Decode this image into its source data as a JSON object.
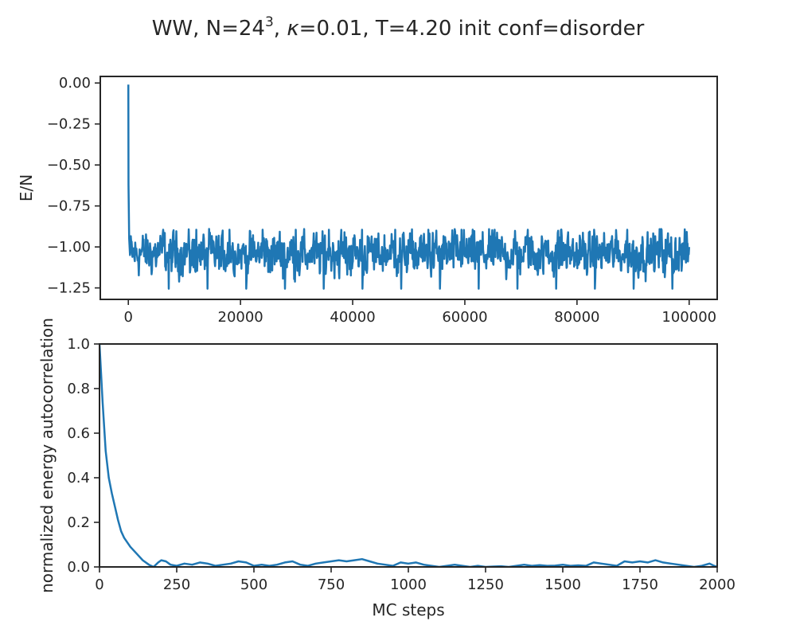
{
  "figure": {
    "title_prefix": "WW, N=24",
    "title_exponent": "3",
    "title_kappa_symbol": "κ",
    "title_suffix": "=0.01, T=4.20 init conf=disorder"
  },
  "chart_data": [
    {
      "type": "line",
      "xlabel": "",
      "ylabel": "E/N",
      "xlim": [
        -5000,
        105000
      ],
      "ylim": [
        -1.32,
        0.04
      ],
      "xticks": [
        0,
        20000,
        40000,
        60000,
        80000,
        100000
      ],
      "xtick_labels": [
        "0",
        "20000",
        "40000",
        "60000",
        "80000",
        "100000"
      ],
      "yticks": [
        0.0,
        -0.25,
        -0.5,
        -0.75,
        -1.0,
        -1.25
      ],
      "ytick_labels": [
        "0.00",
        "−0.25",
        "−0.50",
        "−0.75",
        "−1.00",
        "−1.25"
      ],
      "grid": false,
      "series": [
        {
          "color": "#1f77b4",
          "x_start": 0,
          "x_end": 100000,
          "initial_points": [
            [
              0,
              -0.01
            ],
            [
              30,
              -0.62
            ],
            [
              150,
              -0.95
            ],
            [
              300,
              -1.05
            ]
          ],
          "mean": -1.04,
          "min": -1.26,
          "max": -0.89
        }
      ]
    },
    {
      "type": "line",
      "xlabel": "MC steps",
      "ylabel": "normalized energy autocorrelation",
      "xlim": [
        0,
        2000
      ],
      "ylim": [
        0,
        1
      ],
      "xticks": [
        0,
        250,
        500,
        750,
        1000,
        1250,
        1500,
        1750,
        2000
      ],
      "xtick_labels": [
        "0",
        "250",
        "500",
        "750",
        "1000",
        "1250",
        "1500",
        "1750",
        "2000"
      ],
      "yticks": [
        0.0,
        0.2,
        0.4,
        0.6,
        0.8,
        1.0
      ],
      "ytick_labels": [
        "0.0",
        "0.2",
        "0.4",
        "0.6",
        "0.8",
        "1.0"
      ],
      "grid": false,
      "series": [
        {
          "color": "#1f77b4",
          "x": [
            0,
            10,
            20,
            30,
            40,
            50,
            60,
            70,
            80,
            90,
            100,
            120,
            140,
            160,
            175,
            190,
            200,
            215,
            230,
            250,
            275,
            300,
            325,
            350,
            375,
            400,
            425,
            450,
            475,
            500,
            525,
            550,
            575,
            600,
            625,
            650,
            675,
            700,
            725,
            750,
            775,
            800,
            825,
            850,
            875,
            900,
            925,
            950,
            975,
            1000,
            1025,
            1050,
            1075,
            1100,
            1125,
            1150,
            1175,
            1200,
            1225,
            1250,
            1275,
            1300,
            1325,
            1350,
            1375,
            1400,
            1425,
            1450,
            1475,
            1500,
            1525,
            1550,
            1575,
            1600,
            1625,
            1650,
            1675,
            1700,
            1725,
            1750,
            1775,
            1800,
            1825,
            1850,
            1875,
            1900,
            1925,
            1950,
            1975,
            1990,
            2000
          ],
          "y": [
            1.0,
            0.74,
            0.52,
            0.4,
            0.33,
            0.27,
            0.21,
            0.16,
            0.13,
            0.11,
            0.09,
            0.06,
            0.03,
            0.01,
            0.0,
            0.02,
            0.03,
            0.025,
            0.01,
            0.005,
            0.015,
            0.01,
            0.02,
            0.015,
            0.005,
            0.01,
            0.015,
            0.025,
            0.02,
            0.005,
            0.01,
            0.005,
            0.01,
            0.02,
            0.025,
            0.01,
            0.005,
            0.015,
            0.02,
            0.025,
            0.03,
            0.025,
            0.03,
            0.035,
            0.025,
            0.015,
            0.01,
            0.005,
            0.02,
            0.015,
            0.02,
            0.01,
            0.005,
            0.0,
            0.005,
            0.01,
            0.005,
            0.0,
            0.005,
            0.0,
            0.002,
            0.003,
            0.0,
            0.005,
            0.01,
            0.005,
            0.008,
            0.005,
            0.006,
            0.01,
            0.005,
            0.007,
            0.005,
            0.02,
            0.015,
            0.01,
            0.005,
            0.025,
            0.02,
            0.025,
            0.02,
            0.03,
            0.02,
            0.015,
            0.01,
            0.005,
            0.0,
            0.005,
            0.015,
            0.005,
            0.0
          ]
        }
      ]
    }
  ]
}
